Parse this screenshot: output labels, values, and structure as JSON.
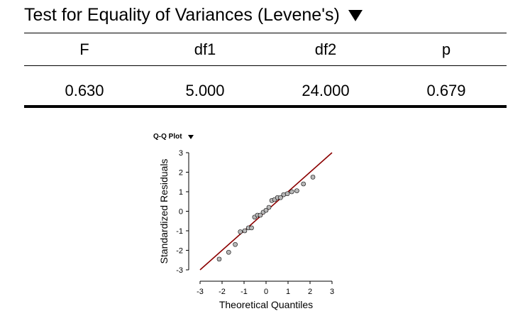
{
  "table": {
    "title": "Test for Equality of Variances (Levene's)",
    "columns": [
      "F",
      "df1",
      "df2",
      "p"
    ],
    "values": [
      "0.630",
      "5.000",
      "24.000",
      "0.679"
    ]
  },
  "plot": {
    "title": "Q-Q Plot",
    "icon": "dropdown-triangle-icon",
    "line_color": "#8b0000",
    "point_fill": "#b8b8b8",
    "chart_data": {
      "type": "scatter",
      "xlabel": "Theoretical Quantiles",
      "ylabel": "Standardized Residuals",
      "xlim": [
        -3,
        3
      ],
      "ylim": [
        -3,
        3
      ],
      "xticks": [
        "-3",
        "-2",
        "-1",
        "0",
        "1",
        "2",
        "3"
      ],
      "yticks": [
        "-3",
        "-2",
        "-1",
        "0",
        "1",
        "2",
        "3"
      ],
      "reference_line": [
        [
          -3,
          -3
        ],
        [
          3,
          3
        ]
      ],
      "points": [
        [
          -2.13,
          -2.45
        ],
        [
          -1.7,
          -2.1
        ],
        [
          -1.4,
          -1.7
        ],
        [
          -1.17,
          -1.05
        ],
        [
          -0.97,
          -1.0
        ],
        [
          -0.8,
          -0.85
        ],
        [
          -0.66,
          -0.85
        ],
        [
          -0.52,
          -0.3
        ],
        [
          -0.39,
          -0.2
        ],
        [
          -0.26,
          -0.2
        ],
        [
          -0.13,
          -0.05
        ],
        [
          0.0,
          0.05
        ],
        [
          0.13,
          0.2
        ],
        [
          0.26,
          0.55
        ],
        [
          0.39,
          0.6
        ],
        [
          0.52,
          0.7
        ],
        [
          0.66,
          0.7
        ],
        [
          0.8,
          0.85
        ],
        [
          0.97,
          0.9
        ],
        [
          1.17,
          1.0
        ],
        [
          1.4,
          1.05
        ],
        [
          1.7,
          1.4
        ],
        [
          2.13,
          1.75
        ]
      ]
    }
  }
}
